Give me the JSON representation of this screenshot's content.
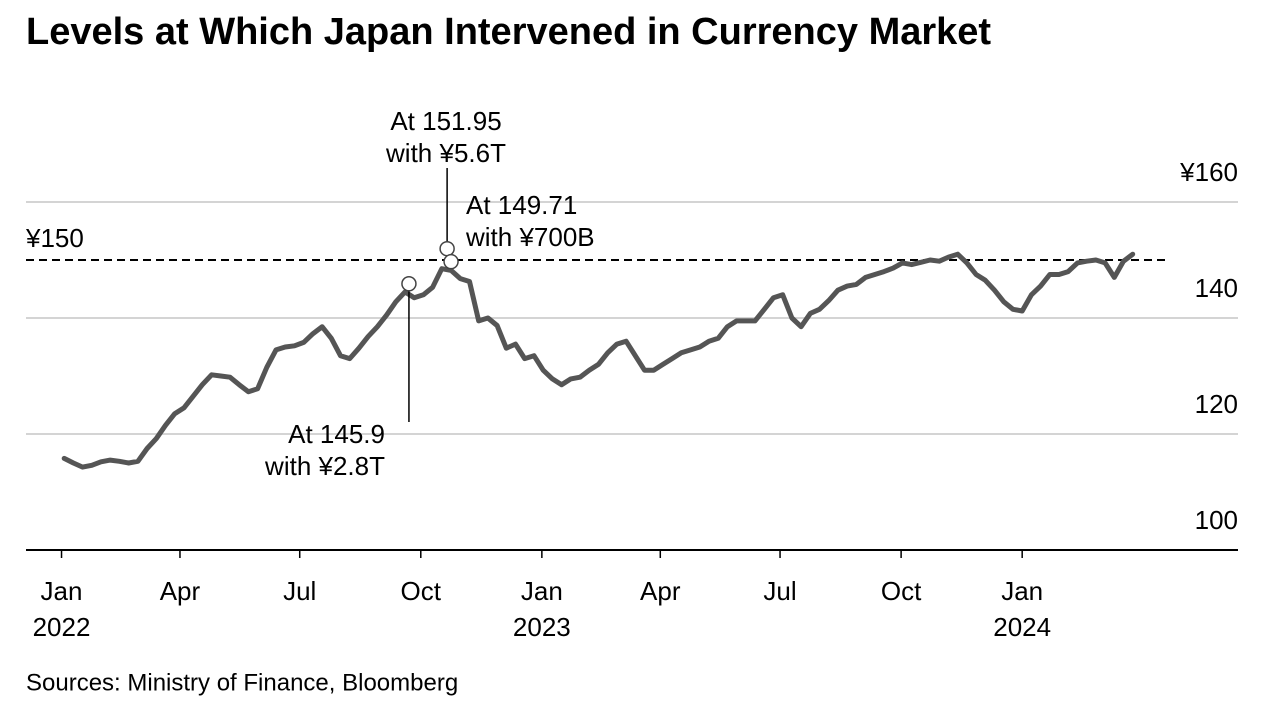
{
  "chart_data": {
    "type": "line",
    "title": "Levels at Which Japan Intervened in Currency Market",
    "source": "Sources: Ministry of Finance, Bloomberg",
    "color": "#555555",
    "x": [
      "2022-01-03",
      "2022-01-10",
      "2022-01-17",
      "2022-01-24",
      "2022-01-31",
      "2022-02-07",
      "2022-02-14",
      "2022-02-21",
      "2022-02-28",
      "2022-03-07",
      "2022-03-14",
      "2022-03-21",
      "2022-03-28",
      "2022-04-04",
      "2022-04-11",
      "2022-04-18",
      "2022-04-25",
      "2022-05-02",
      "2022-05-09",
      "2022-05-16",
      "2022-05-23",
      "2022-05-30",
      "2022-06-06",
      "2022-06-13",
      "2022-06-20",
      "2022-06-27",
      "2022-07-04",
      "2022-07-11",
      "2022-07-18",
      "2022-07-25",
      "2022-08-01",
      "2022-08-08",
      "2022-08-15",
      "2022-08-22",
      "2022-08-29",
      "2022-09-05",
      "2022-09-12",
      "2022-09-19",
      "2022-09-26",
      "2022-10-03",
      "2022-10-10",
      "2022-10-17",
      "2022-10-24",
      "2022-10-31",
      "2022-11-07",
      "2022-11-14",
      "2022-11-21",
      "2022-11-28",
      "2022-12-05",
      "2022-12-12",
      "2022-12-19",
      "2022-12-26",
      "2023-01-02",
      "2023-01-09",
      "2023-01-16",
      "2023-01-23",
      "2023-01-30",
      "2023-02-06",
      "2023-02-13",
      "2023-02-20",
      "2023-02-27",
      "2023-03-06",
      "2023-03-13",
      "2023-03-20",
      "2023-03-27",
      "2023-04-03",
      "2023-04-10",
      "2023-04-17",
      "2023-04-24",
      "2023-05-01",
      "2023-05-08",
      "2023-05-15",
      "2023-05-22",
      "2023-05-29",
      "2023-06-05",
      "2023-06-12",
      "2023-06-19",
      "2023-06-26",
      "2023-07-03",
      "2023-07-10",
      "2023-07-17",
      "2023-07-24",
      "2023-07-31",
      "2023-08-07",
      "2023-08-14",
      "2023-08-21",
      "2023-08-28",
      "2023-09-04",
      "2023-09-11",
      "2023-09-18",
      "2023-09-25",
      "2023-10-02",
      "2023-10-09",
      "2023-10-16",
      "2023-10-23",
      "2023-10-30",
      "2023-11-06",
      "2023-11-13",
      "2023-11-20",
      "2023-11-27",
      "2023-12-04",
      "2023-12-11",
      "2023-12-18",
      "2023-12-25",
      "2024-01-01",
      "2024-01-08",
      "2024-01-15",
      "2024-01-22",
      "2024-01-29",
      "2024-02-05",
      "2024-02-12",
      "2024-02-19",
      "2024-02-26",
      "2024-03-04",
      "2024-03-11",
      "2024-03-18",
      "2024-03-25"
    ],
    "values": [
      115.8,
      115.0,
      114.3,
      114.6,
      115.2,
      115.5,
      115.3,
      115.0,
      115.3,
      117.5,
      119.2,
      121.5,
      123.5,
      124.5,
      126.5,
      128.5,
      130.2,
      130.0,
      129.8,
      128.5,
      127.3,
      127.8,
      131.5,
      134.5,
      135.0,
      135.2,
      135.8,
      137.3,
      138.5,
      136.5,
      133.5,
      133.0,
      134.8,
      136.8,
      138.5,
      140.5,
      142.8,
      144.5,
      143.5,
      144.0,
      145.3,
      148.5,
      148.2,
      146.8,
      146.3,
      139.5,
      140.0,
      138.7,
      134.8,
      135.5,
      133.0,
      133.5,
      131.0,
      129.5,
      128.5,
      129.5,
      129.8,
      131.0,
      132.0,
      134.0,
      135.5,
      136.0,
      133.5,
      131.0,
      131.0,
      132.0,
      133.0,
      134.0,
      134.5,
      135.0,
      136.0,
      136.5,
      138.5,
      139.5,
      139.5,
      139.5,
      141.5,
      143.5,
      144.0,
      140.0,
      138.5,
      140.8,
      141.5,
      143.0,
      144.8,
      145.5,
      145.8,
      147.0,
      147.5,
      148.0,
      148.6,
      149.5,
      149.2,
      149.6,
      150.0,
      149.8,
      150.5,
      151.0,
      149.5,
      147.5,
      146.5,
      144.8,
      142.8,
      141.5,
      141.2,
      144.0,
      145.5,
      147.5,
      147.5,
      148.0,
      149.5,
      149.8,
      150.0,
      149.5,
      147.0,
      149.8,
      151.0
    ],
    "xlim": [
      "2021-12-05",
      "2024-06-13"
    ],
    "xticks": [
      {
        "value": "2022-01-01",
        "label": "Jan\n2022"
      },
      {
        "value": "2022-04-01",
        "label": "Apr"
      },
      {
        "value": "2022-07-01",
        "label": "Jul"
      },
      {
        "value": "2022-10-01",
        "label": "Oct"
      },
      {
        "value": "2023-01-01",
        "label": "Jan\n2023"
      },
      {
        "value": "2023-04-01",
        "label": "Apr"
      },
      {
        "value": "2023-07-01",
        "label": "Jul"
      },
      {
        "value": "2023-10-01",
        "label": "Oct"
      },
      {
        "value": "2024-01-01",
        "label": "Jan\n2024"
      }
    ],
    "ylim": [
      100,
      160
    ],
    "yticks": [
      100,
      120,
      140,
      {
        "value": 160,
        "label": "¥160"
      }
    ],
    "grid": true,
    "reference_line": {
      "value": 150,
      "label": "¥150",
      "style": "dashed"
    },
    "annotations": [
      {
        "x": "2022-09-22",
        "value": 145.9,
        "text": "At 145.9\nwith ¥2.8T"
      },
      {
        "x": "2022-10-21",
        "value": 151.95,
        "text": "At 151.95\nwith ¥5.6T"
      },
      {
        "x": "2022-10-24",
        "value": 149.71,
        "text": "At 149.71\nwith ¥700B"
      }
    ]
  }
}
